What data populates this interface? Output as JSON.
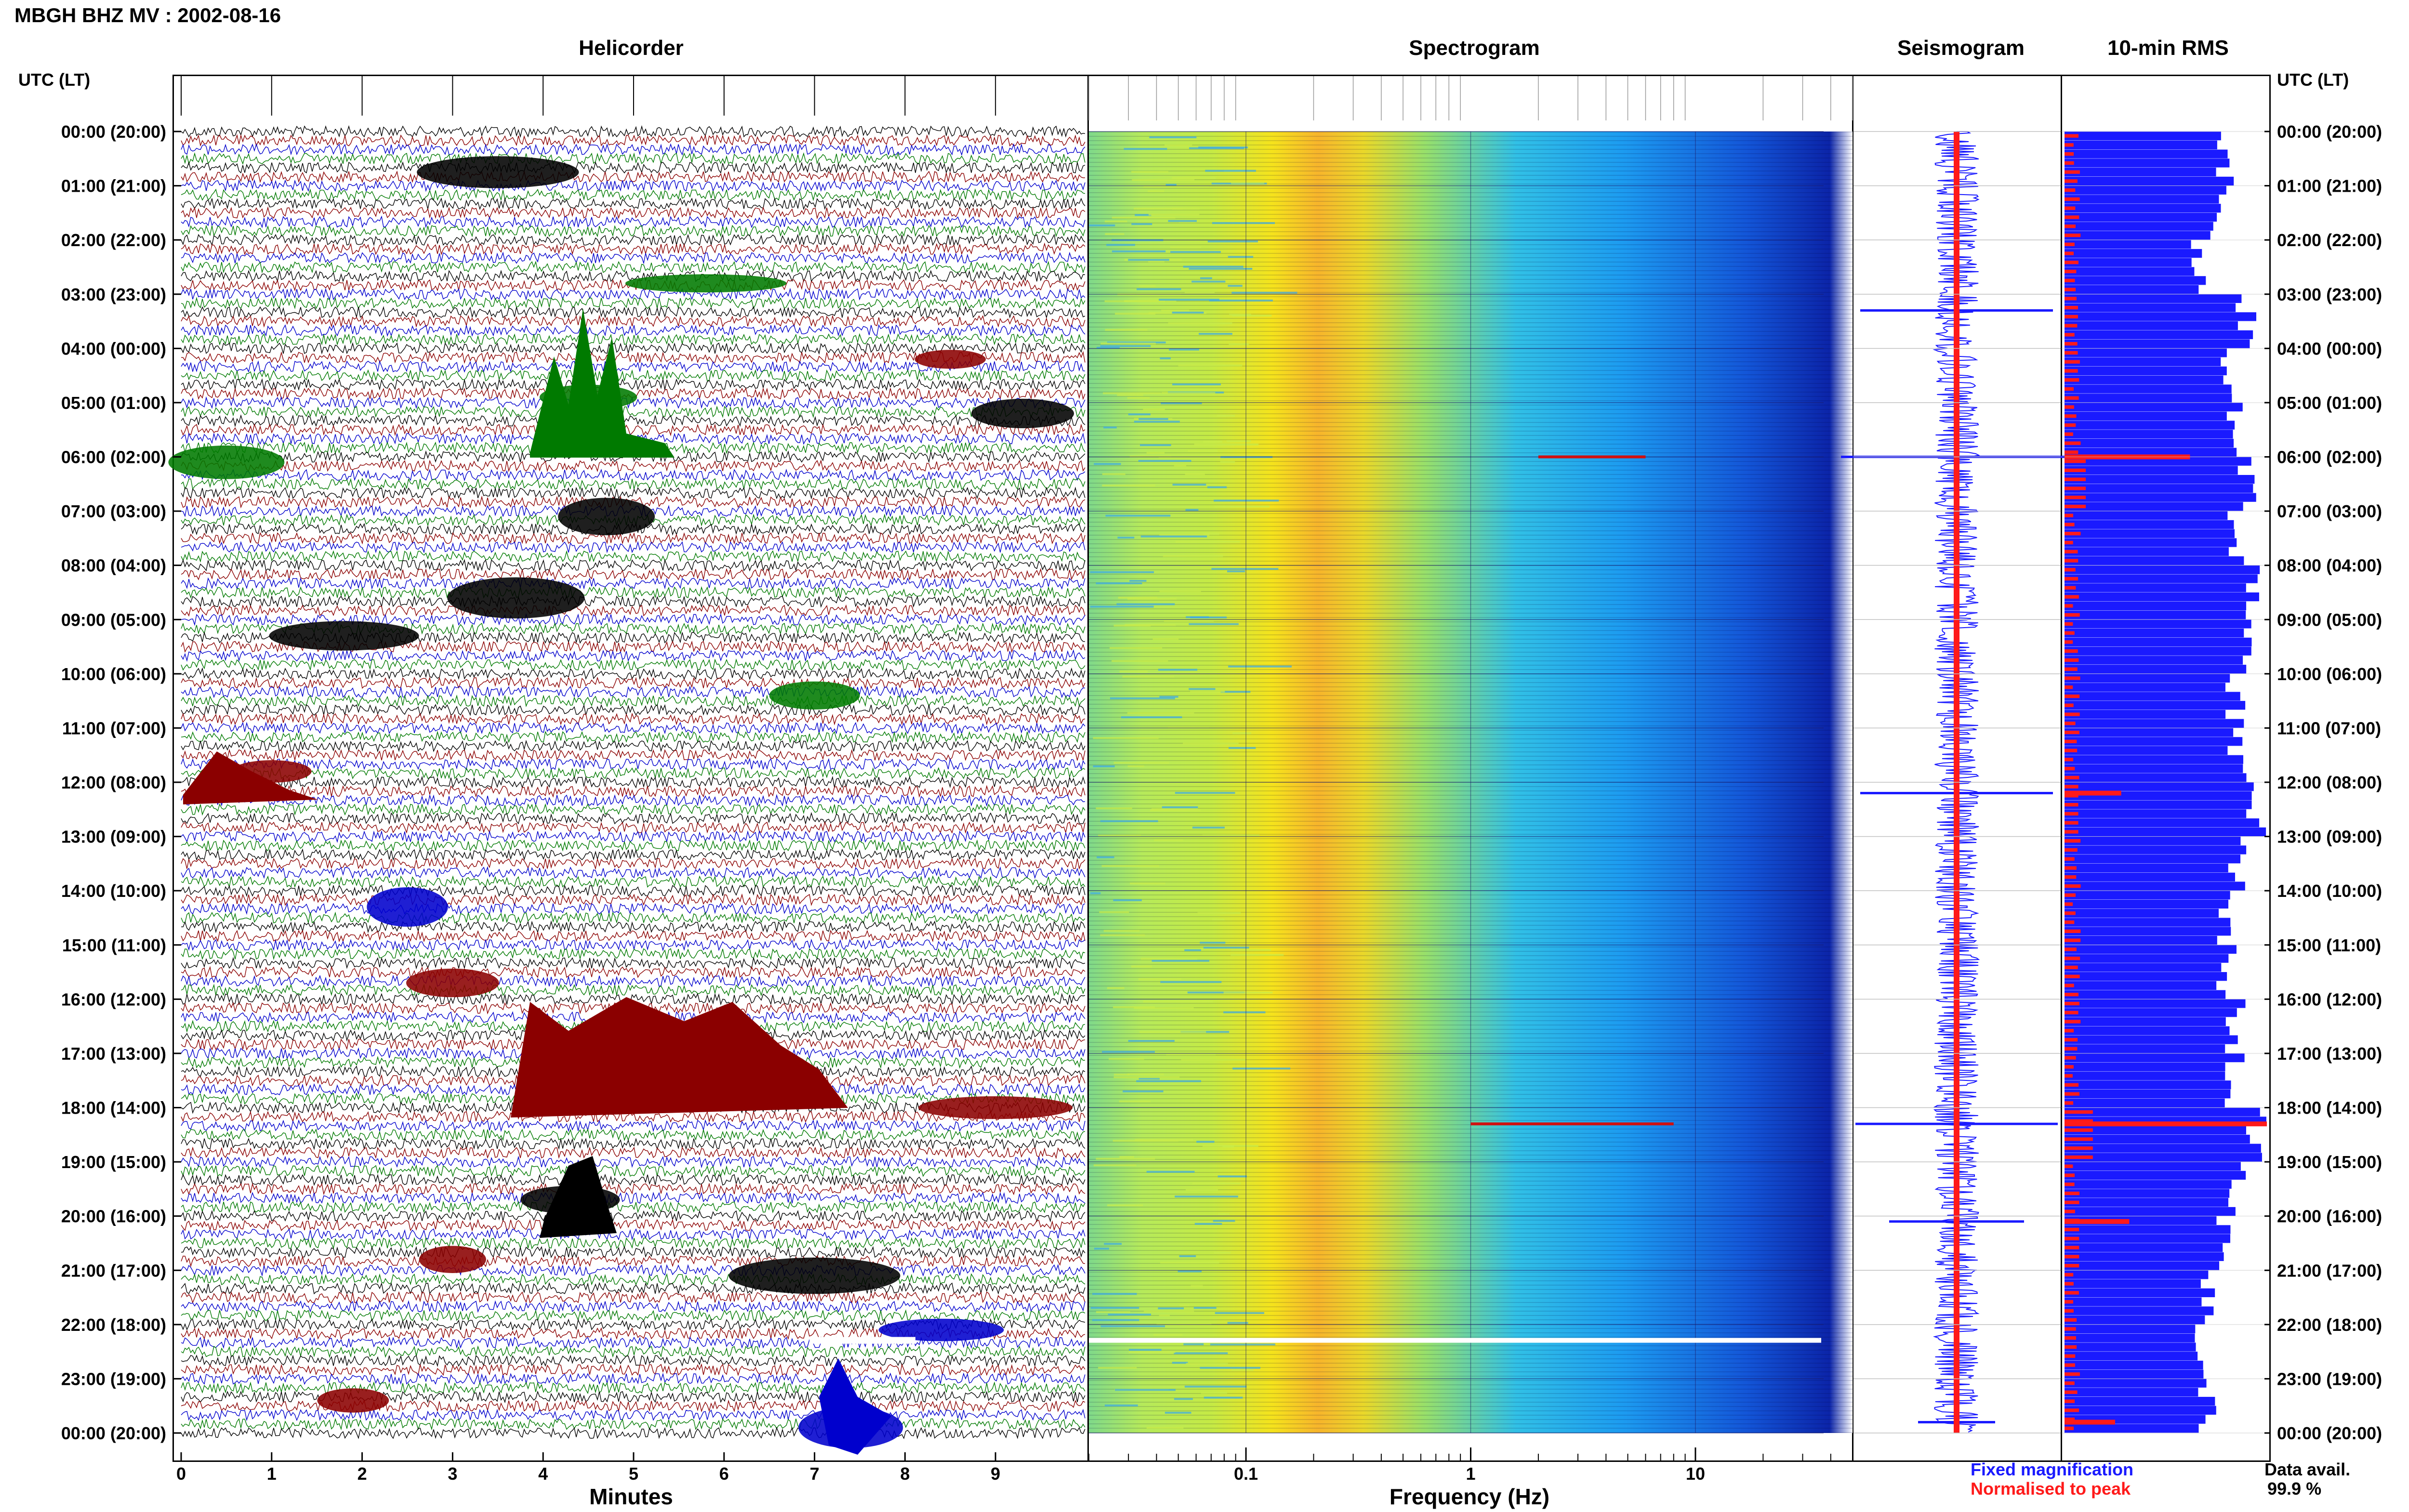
{
  "header": {
    "title": "MBGH BHZ MV : 2002-08-16",
    "utc_lt_label": "UTC (LT)"
  },
  "panels": {
    "helicorder": "Helicorder",
    "spectrogram": "Spectrogram",
    "seismogram": "Seismogram",
    "rms": "10-min RMS"
  },
  "axes": {
    "minutes_label": "Minutes",
    "frequency_label": "Frequency (Hz)"
  },
  "legend": {
    "fixed": "Fixed magnification",
    "normalised": "Normalised to peak",
    "fixed_color": "#1a1aff",
    "normalised_color": "#ff1a1a"
  },
  "availability": {
    "label": "Data avail.",
    "value": "99.9 %"
  },
  "chart_data": {
    "type": "helicorder-spectrogram",
    "time_labels": [
      "00:00 (20:00)",
      "01:00 (21:00)",
      "02:00 (22:00)",
      "03:00 (23:00)",
      "04:00 (00:00)",
      "05:00 (01:00)",
      "06:00 (02:00)",
      "07:00 (03:00)",
      "08:00 (04:00)",
      "09:00 (05:00)",
      "10:00 (06:00)",
      "11:00 (07:00)",
      "12:00 (08:00)",
      "13:00 (09:00)",
      "14:00 (10:00)",
      "15:00 (11:00)",
      "16:00 (12:00)",
      "17:00 (13:00)",
      "18:00 (14:00)",
      "19:00 (15:00)",
      "20:00 (16:00)",
      "21:00 (17:00)",
      "22:00 (18:00)",
      "23:00 (19:00)",
      "00:00 (20:00)"
    ],
    "minutes_ticks": [
      "0",
      "1",
      "2",
      "3",
      "4",
      "5",
      "6",
      "7",
      "8",
      "9"
    ],
    "minutes_range": [
      0,
      10
    ],
    "frequency_ticks": [
      {
        "label": "0.1",
        "value": 0.1
      },
      {
        "label": "1",
        "value": 1
      },
      {
        "label": "10",
        "value": 10
      }
    ],
    "frequency_range": [
      0.02,
      50
    ],
    "trace_colors": [
      "#000000",
      "#8b0000",
      "#0000cd",
      "#007a00"
    ],
    "events": [
      {
        "hour": 0.75,
        "minute": 3.5,
        "color": "#000000"
      },
      {
        "hour": 2.8,
        "minute": 5.8,
        "color": "#007a00"
      },
      {
        "hour": 4.2,
        "minute": 8.5,
        "color": "#8b0000"
      },
      {
        "hour": 4.9,
        "minute": 4.5,
        "color": "#007a00"
      },
      {
        "hour": 5.2,
        "minute": 9.3,
        "color": "#000000"
      },
      {
        "hour": 6.1,
        "minute": 0.5,
        "color": "#007a00"
      },
      {
        "hour": 7.1,
        "minute": 4.7,
        "color": "#000000"
      },
      {
        "hour": 8.6,
        "minute": 3.7,
        "color": "#000000"
      },
      {
        "hour": 9.3,
        "minute": 1.8,
        "color": "#000000"
      },
      {
        "hour": 10.4,
        "minute": 7.0,
        "color": "#007a00"
      },
      {
        "hour": 11.8,
        "minute": 1.0,
        "color": "#8b0000"
      },
      {
        "hour": 14.3,
        "minute": 2.5,
        "color": "#0000cd"
      },
      {
        "hour": 15.7,
        "minute": 3.0,
        "color": "#8b0000"
      },
      {
        "hour": 17.6,
        "minute": 5.0,
        "color": "#8b0000"
      },
      {
        "hour": 18.0,
        "minute": 9.0,
        "color": "#8b0000"
      },
      {
        "hour": 19.7,
        "minute": 4.3,
        "color": "#000000"
      },
      {
        "hour": 20.8,
        "minute": 3.0,
        "color": "#8b0000"
      },
      {
        "hour": 21.1,
        "minute": 7.0,
        "color": "#000000"
      },
      {
        "hour": 22.1,
        "minute": 8.4,
        "color": "#0000cd"
      },
      {
        "hour": 23.4,
        "minute": 1.9,
        "color": "#8b0000"
      },
      {
        "hour": 23.9,
        "minute": 7.4,
        "color": "#0000cd"
      }
    ],
    "rms_fixed_rel": [
      0.85,
      0.8,
      0.7,
      0.95,
      0.85,
      0.9,
      0.95,
      0.9,
      1.0,
      0.95,
      0.9,
      0.9,
      1.0,
      0.9,
      0.85,
      0.85,
      0.9,
      0.9,
      1.0,
      0.9,
      0.85,
      0.75,
      0.7,
      0.75,
      0.8
    ],
    "rms_normalised_rel": [
      0.1,
      0.1,
      0.1,
      0.15,
      0.1,
      0.1,
      0.65,
      0.1,
      0.1,
      0.1,
      0.1,
      0.1,
      0.28,
      0.1,
      0.1,
      0.1,
      0.1,
      0.1,
      1.0,
      0.1,
      0.32,
      0.1,
      0.1,
      0.1,
      0.25
    ],
    "spectral_lines_hz": [
      {
        "hour": 6.0,
        "f1": 2.0,
        "f2": 6.0
      },
      {
        "hour": 18.3,
        "f1": 1.0,
        "f2": 8.0
      }
    ],
    "data_gap_hour": 22.3
  }
}
